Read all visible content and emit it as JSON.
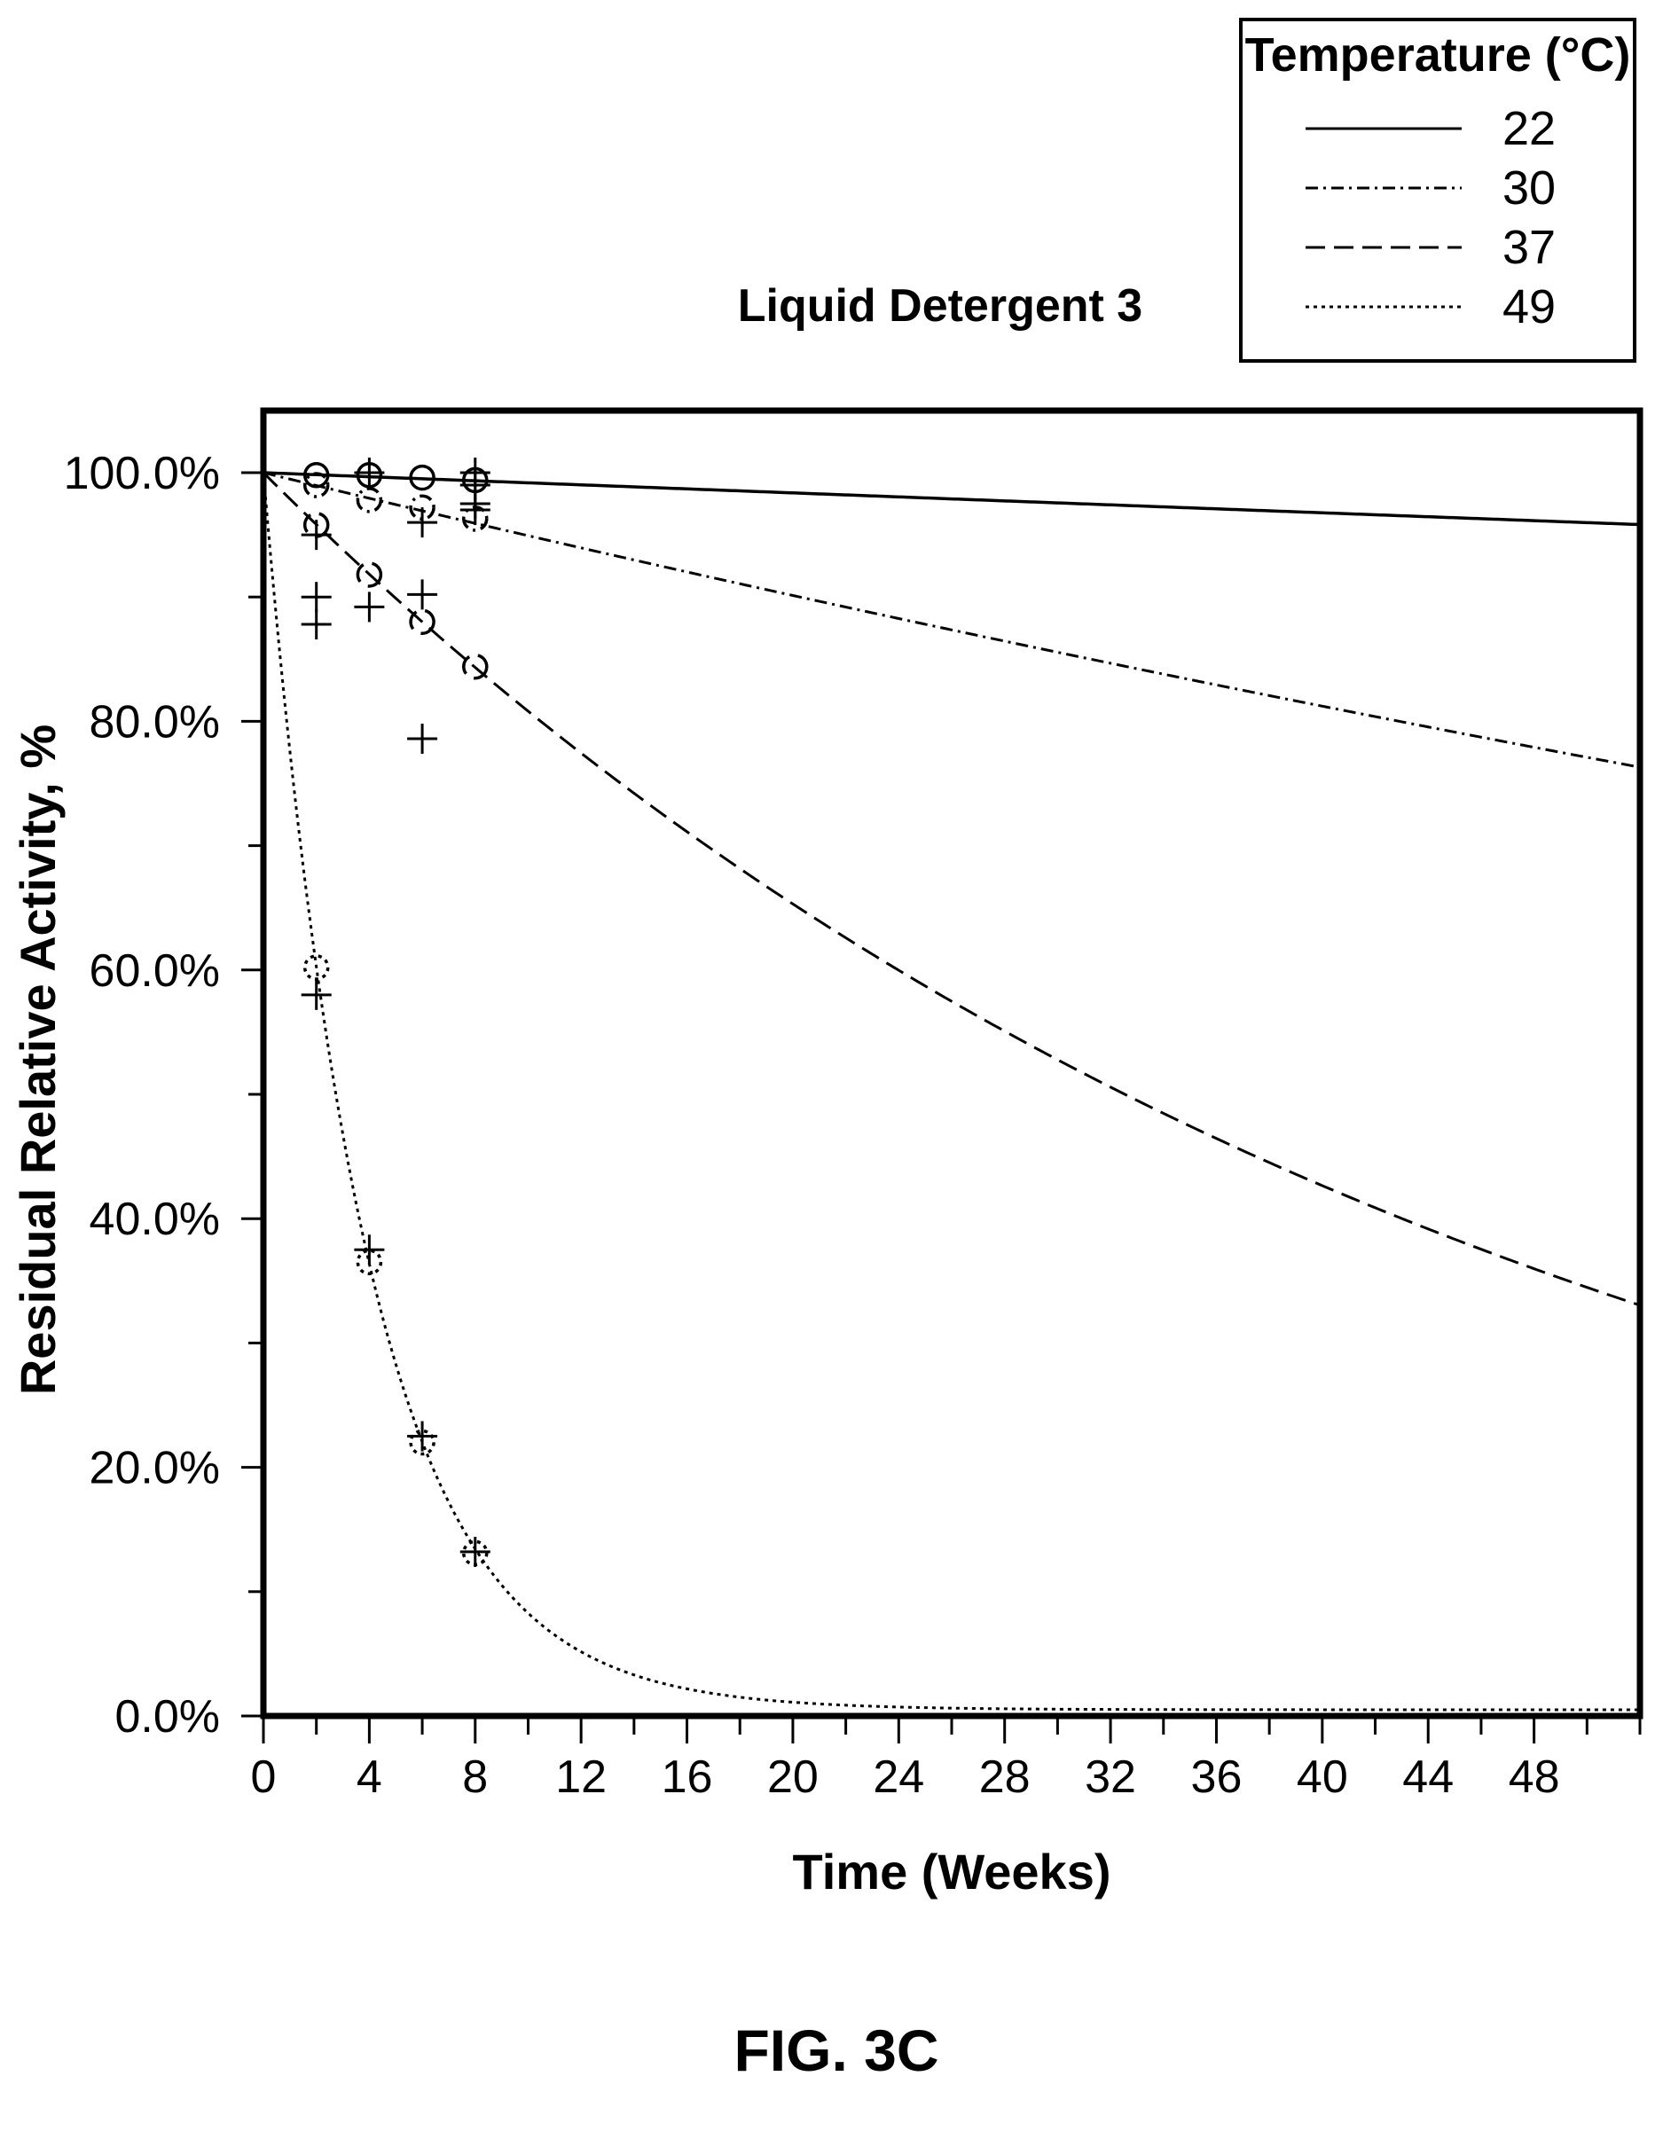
{
  "figure_label": "FIG. 3C",
  "chart_data": {
    "type": "line",
    "title": "Liquid Detergent 3",
    "xlabel": "Time (Weeks)",
    "ylabel": "Residual Relative Activity, %",
    "xlim": [
      0,
      52
    ],
    "ylim": [
      0,
      100
    ],
    "x_ticks": [
      0,
      4,
      8,
      12,
      16,
      20,
      24,
      28,
      32,
      36,
      40,
      44,
      48
    ],
    "y_ticks": [
      0,
      20,
      40,
      60,
      80,
      100
    ],
    "y_tick_labels": [
      "0.0%",
      "20.0%",
      "40.0%",
      "60.0%",
      "80.0%",
      "100.0%"
    ],
    "grid": false,
    "legend": {
      "title": "Temperature (°C)",
      "position": "top-right-outside"
    },
    "series": [
      {
        "name": "22",
        "line_style": "solid",
        "fit": {
          "model": "exponential_decay",
          "initial": 100,
          "rate_per_week": 0.00082
        },
        "points_circle": [
          {
            "x": 2,
            "y": 99.8
          },
          {
            "x": 4,
            "y": 99.8
          },
          {
            "x": 6,
            "y": 99.6
          },
          {
            "x": 8,
            "y": 99.4
          }
        ],
        "points_plus": [
          {
            "x": 4,
            "y": 100.0
          },
          {
            "x": 8,
            "y": 100.0
          },
          {
            "x": 8,
            "y": 99.0
          },
          {
            "x": 8,
            "y": 97.5
          }
        ]
      },
      {
        "name": "30",
        "line_style": "dashdot",
        "fit": {
          "model": "exponential_decay",
          "initial": 100,
          "rate_per_week": 0.0052
        },
        "points_circle": [
          {
            "x": 2,
            "y": 99.0
          },
          {
            "x": 4,
            "y": 97.8
          },
          {
            "x": 6,
            "y": 97.2
          },
          {
            "x": 8,
            "y": 96.3
          }
        ],
        "points_plus": [
          {
            "x": 6,
            "y": 96.0
          },
          {
            "x": 8,
            "y": 97.0
          }
        ]
      },
      {
        "name": "37",
        "line_style": "dashed",
        "fit": {
          "model": "exponential_decay",
          "initial": 100,
          "rate_per_week": 0.0213
        },
        "points_circle": [
          {
            "x": 2,
            "y": 95.8
          },
          {
            "x": 4,
            "y": 91.8
          },
          {
            "x": 6,
            "y": 88.0
          },
          {
            "x": 8,
            "y": 84.4
          }
        ],
        "points_plus": [
          {
            "x": 2,
            "y": 95.0
          },
          {
            "x": 2,
            "y": 90.0
          },
          {
            "x": 2,
            "y": 87.8
          },
          {
            "x": 4,
            "y": 89.2
          },
          {
            "x": 6,
            "y": 90.2
          },
          {
            "x": 6,
            "y": 78.6
          }
        ]
      },
      {
        "name": "49",
        "line_style": "dotted",
        "fit": {
          "model": "exponential_decay",
          "initial": 100,
          "rate_per_week": 0.255,
          "floor": 0.5
        },
        "points_circle": [
          {
            "x": 2,
            "y": 60.2
          },
          {
            "x": 4,
            "y": 36.5
          },
          {
            "x": 6,
            "y": 22.0
          },
          {
            "x": 8,
            "y": 13.1
          }
        ],
        "points_plus": [
          {
            "x": 2,
            "y": 58.0
          },
          {
            "x": 4,
            "y": 37.5
          },
          {
            "x": 6,
            "y": 22.5
          },
          {
            "x": 8,
            "y": 13.2
          }
        ]
      }
    ]
  }
}
